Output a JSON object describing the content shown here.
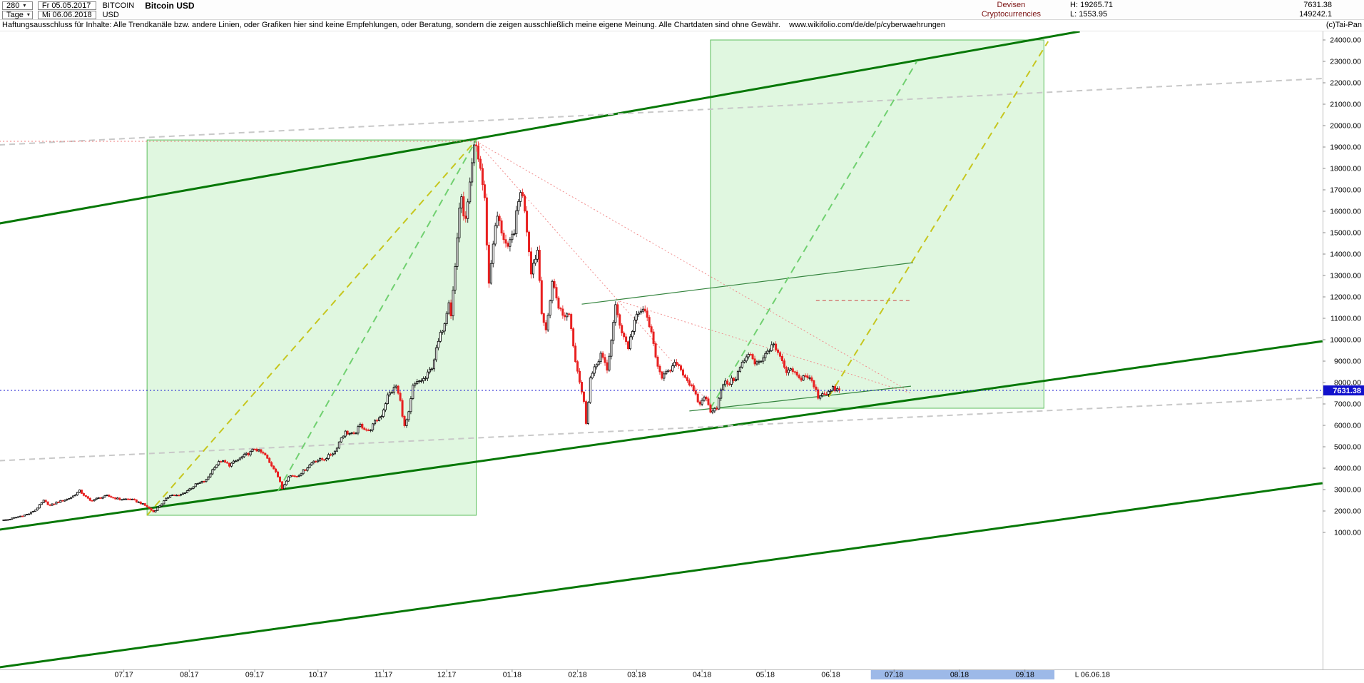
{
  "toolbar": {
    "bars_count": "280",
    "timeframe": "Tage",
    "start_date": "Fr 05.05.2017",
    "end_date": "Mi 06.06.2018",
    "symbol": "BITCOIN",
    "currency": "USD",
    "title": "Bitcoin USD",
    "market": "Devisen",
    "market_sub": "Cryptocurrencies",
    "high_label": "H:",
    "high_value": "19265.71",
    "low_label": "L:",
    "low_value": "1553.95",
    "last_value": "7631.38",
    "secondary_value": "149242.1"
  },
  "disclaimer": {
    "text": "Haftungsausschluss für Inhalte: Alle Trendkanäle bzw. andere Linien, oder Grafiken hier sind keine Empfehlungen, oder Beratung, sondern die zeigen ausschließlich meine eigene Meinung. Alle Chartdaten sind ohne Gewähr.",
    "url": "www.wikifolio.com/de/de/p/cyberwaehrungen"
  },
  "copyright": "(c)Tai-Pan",
  "chart_data": {
    "type": "candlestick",
    "title": "Bitcoin USD",
    "timeframe": "Tage (daily)",
    "period_start": "05.05.2017",
    "period_end": "06.06.2018",
    "high": 19265.71,
    "low": 1553.95,
    "last": 7631.38,
    "y_axis": {
      "min": 1000,
      "max": 24000,
      "step": 1000
    },
    "y_tick_labels": [
      "24000.00",
      "23000.00",
      "22000.00",
      "21000.00",
      "20000.00",
      "19000.00",
      "18000.00",
      "17000.00",
      "16000.00",
      "15000.00",
      "14000.00",
      "13000.00",
      "12000.00",
      "11000.00",
      "10000.00",
      "9000.00",
      "8000.00",
      "7000.00",
      "6000.00",
      "5000.00",
      "4000.00",
      "3000.00",
      "2000.00",
      "1000.00"
    ],
    "x_axis": {
      "ticks": [
        {
          "label": "07.17",
          "day": 57
        },
        {
          "label": "08.17",
          "day": 88
        },
        {
          "label": "09.17",
          "day": 119
        },
        {
          "label": "10.17",
          "day": 149
        },
        {
          "label": "11.17",
          "day": 180
        },
        {
          "label": "12.17",
          "day": 210
        },
        {
          "label": "01.18",
          "day": 241
        },
        {
          "label": "02.18",
          "day": 272
        },
        {
          "label": "03.18",
          "day": 300
        },
        {
          "label": "04.18",
          "day": 331
        },
        {
          "label": "05.18",
          "day": 361
        },
        {
          "label": "06.18",
          "day": 392
        },
        {
          "label": "07.18",
          "day": 422
        },
        {
          "label": "08.18",
          "day": 453
        },
        {
          "label": "09.18",
          "day": 484
        }
      ],
      "last_label": {
        "label": "L 06.06.18",
        "day": 516
      },
      "highlight_days": [
        411,
        498
      ]
    },
    "price_path": [
      [
        0,
        1560
      ],
      [
        3,
        1600
      ],
      [
        6,
        1680
      ],
      [
        10,
        1790
      ],
      [
        13,
        1870
      ],
      [
        16,
        2050
      ],
      [
        20,
        2480
      ],
      [
        23,
        2250
      ],
      [
        26,
        2400
      ],
      [
        31,
        2550
      ],
      [
        34,
        2700
      ],
      [
        37,
        2940
      ],
      [
        40,
        2650
      ],
      [
        42,
        2480
      ],
      [
        46,
        2600
      ],
      [
        50,
        2710
      ],
      [
        53,
        2620
      ],
      [
        56,
        2550
      ],
      [
        61,
        2560
      ],
      [
        66,
        2370
      ],
      [
        69,
        2200
      ],
      [
        72,
        1960
      ],
      [
        75,
        2250
      ],
      [
        80,
        2760
      ],
      [
        84,
        2710
      ],
      [
        87,
        2880
      ],
      [
        92,
        3230
      ],
      [
        97,
        3430
      ],
      [
        101,
        4090
      ],
      [
        104,
        4350
      ],
      [
        108,
        4150
      ],
      [
        112,
        4390
      ],
      [
        115,
        4580
      ],
      [
        118,
        4740
      ],
      [
        120,
        4920
      ],
      [
        125,
        4600
      ],
      [
        127,
        4250
      ],
      [
        130,
        3880
      ],
      [
        133,
        3050
      ],
      [
        136,
        3650
      ],
      [
        140,
        3630
      ],
      [
        144,
        3950
      ],
      [
        148,
        4350
      ],
      [
        153,
        4420
      ],
      [
        158,
        4790
      ],
      [
        161,
        5440
      ],
      [
        163,
        5680
      ],
      [
        167,
        5550
      ],
      [
        170,
        6010
      ],
      [
        174,
        5720
      ],
      [
        177,
        6150
      ],
      [
        180,
        6470
      ],
      [
        183,
        7370
      ],
      [
        187,
        7830
      ],
      [
        189,
        7110
      ],
      [
        191,
        5930
      ],
      [
        193,
        6550
      ],
      [
        195,
        7800
      ],
      [
        198,
        8060
      ],
      [
        201,
        8200
      ],
      [
        204,
        8750
      ],
      [
        207,
        9880
      ],
      [
        210,
        10880
      ],
      [
        212,
        11900
      ],
      [
        213,
        11200
      ],
      [
        215,
        13400
      ],
      [
        217,
        16200
      ],
      [
        218,
        16450
      ],
      [
        220,
        15500
      ],
      [
        222,
        17100
      ],
      [
        224,
        19100
      ],
      [
        225,
        19000
      ],
      [
        227,
        18000
      ],
      [
        229,
        16500
      ],
      [
        231,
        12600
      ],
      [
        233,
        14600
      ],
      [
        235,
        15750
      ],
      [
        237,
        15100
      ],
      [
        240,
        14150
      ],
      [
        243,
        15150
      ],
      [
        246,
        17050
      ],
      [
        248,
        16150
      ],
      [
        251,
        13250
      ],
      [
        254,
        14200
      ],
      [
        256,
        11400
      ],
      [
        258,
        10300
      ],
      [
        261,
        12750
      ],
      [
        264,
        11600
      ],
      [
        266,
        11100
      ],
      [
        269,
        11250
      ],
      [
        272,
        9100
      ],
      [
        276,
        7050
      ],
      [
        277,
        6150
      ],
      [
        279,
        8200
      ],
      [
        281,
        8600
      ],
      [
        284,
        9350
      ],
      [
        287,
        8550
      ],
      [
        291,
        11500
      ],
      [
        294,
        10400
      ],
      [
        297,
        9650
      ],
      [
        300,
        10900
      ],
      [
        304,
        11450
      ],
      [
        307,
        10750
      ],
      [
        310,
        9150
      ],
      [
        313,
        8300
      ],
      [
        316,
        8450
      ],
      [
        320,
        8950
      ],
      [
        323,
        8450
      ],
      [
        326,
        7950
      ],
      [
        329,
        7350
      ],
      [
        331,
        6950
      ],
      [
        333,
        7400
      ],
      [
        336,
        6700
      ],
      [
        339,
        6850
      ],
      [
        342,
        7950
      ],
      [
        345,
        8000
      ],
      [
        348,
        8250
      ],
      [
        351,
        8900
      ],
      [
        355,
        9350
      ],
      [
        357,
        8950
      ],
      [
        361,
        9100
      ],
      [
        365,
        9800
      ],
      [
        368,
        9350
      ],
      [
        372,
        8450
      ],
      [
        375,
        8550
      ],
      [
        378,
        8150
      ],
      [
        381,
        8350
      ],
      [
        384,
        8050
      ],
      [
        387,
        7350
      ],
      [
        389,
        7500
      ],
      [
        392,
        7550
      ],
      [
        394,
        7700
      ],
      [
        397,
        7631.38
      ]
    ],
    "colors": {
      "up": "#000000",
      "down": "#e82020",
      "price_line": "#1414d2",
      "box_fill": "rgba(160,230,160,0.32)",
      "box_border": "#5cbe5c",
      "future_band": "#9db9e8",
      "channel": "#067806"
    },
    "annotations": {
      "boxes": [
        {
          "name": "rally-phase-box",
          "d1": 68,
          "p1": 1800,
          "d2": 224,
          "p2": 19330
        },
        {
          "name": "projection-phase-box",
          "d1": 335,
          "p1": 6800,
          "d2": 493,
          "p2": 24000
        }
      ],
      "lines": [
        {
          "name": "upper-channel-line",
          "color": "#067806",
          "width": 3,
          "dash": null,
          "from": [
            -2,
            15430
          ],
          "to": [
            510,
            24400
          ]
        },
        {
          "name": "lower-channel-line",
          "color": "#067806",
          "width": 3,
          "dash": null,
          "from": [
            -2,
            1130
          ],
          "to": [
            625,
            9930
          ]
        },
        {
          "name": "outer-lower-channel-line",
          "color": "#067806",
          "width": 3,
          "dash": null,
          "from": [
            -2,
            -5300
          ],
          "to": [
            625,
            3300
          ]
        },
        {
          "name": "gray-parallel-upper",
          "color": "#c8c8c8",
          "width": 2,
          "dash": "8 6",
          "from": [
            -2,
            19100
          ],
          "to": [
            625,
            22200
          ]
        },
        {
          "name": "gray-parallel-lower",
          "color": "#c8c8c8",
          "width": 2,
          "dash": "8 6",
          "from": [
            -2,
            4350
          ],
          "to": [
            625,
            7300
          ]
        },
        {
          "name": "ath-level-red",
          "color": "#f07878",
          "width": 1,
          "dash": "2 3",
          "from": [
            -2,
            19265.71
          ],
          "to": [
            224,
            19265.71
          ]
        },
        {
          "name": "peak-fan-red-1",
          "color": "#f08c8c",
          "width": 1,
          "dash": "2 3",
          "from": [
            224,
            19265
          ],
          "to": [
            336,
            6870
          ]
        },
        {
          "name": "peak-fan-red-2",
          "color": "#f08c8c",
          "width": 1,
          "dash": "2 3",
          "from": [
            224,
            19265
          ],
          "to": [
            429,
            7600
          ]
        },
        {
          "name": "feb-high-fan-red",
          "color": "#f08c8c",
          "width": 1,
          "dash": "2 3",
          "from": [
            292,
            11800
          ],
          "to": [
            430,
            7500
          ]
        },
        {
          "name": "level-segment-red",
          "color": "#cc4444",
          "width": 1,
          "dash": "5 4",
          "from": [
            385,
            11830
          ],
          "to": [
            430,
            11830
          ]
        },
        {
          "name": "rising-resistance-thin-green",
          "color": "#35853f",
          "width": 1.2,
          "dash": null,
          "from": [
            274,
            11660
          ],
          "to": [
            431,
            13600
          ]
        },
        {
          "name": "rising-support-thin-green",
          "color": "#35853f",
          "width": 1.2,
          "dash": null,
          "from": [
            325,
            6670
          ],
          "to": [
            430,
            7830
          ]
        },
        {
          "name": "rally-trendline-yellow",
          "color": "#c6c61e",
          "width": 2,
          "dash": "10 7",
          "from": [
            68,
            1800
          ],
          "to": [
            224,
            19330
          ]
        },
        {
          "name": "rally-trendline-green",
          "color": "#70d070",
          "width": 2,
          "dash": "10 7",
          "from": [
            130,
            2930
          ],
          "to": [
            224,
            19330
          ]
        },
        {
          "name": "projection-trendline-green",
          "color": "#70d070",
          "width": 2,
          "dash": "10 7",
          "from": [
            335,
            6800
          ],
          "to": [
            433,
            23030
          ]
        },
        {
          "name": "projection-trendline-yellow",
          "color": "#c6c61e",
          "width": 2,
          "dash": "10 7",
          "from": [
            391,
            7330
          ],
          "to": [
            495,
            23930
          ]
        }
      ]
    },
    "current_price_line": {
      "value": 7631.38,
      "label": "7631.38"
    }
  }
}
